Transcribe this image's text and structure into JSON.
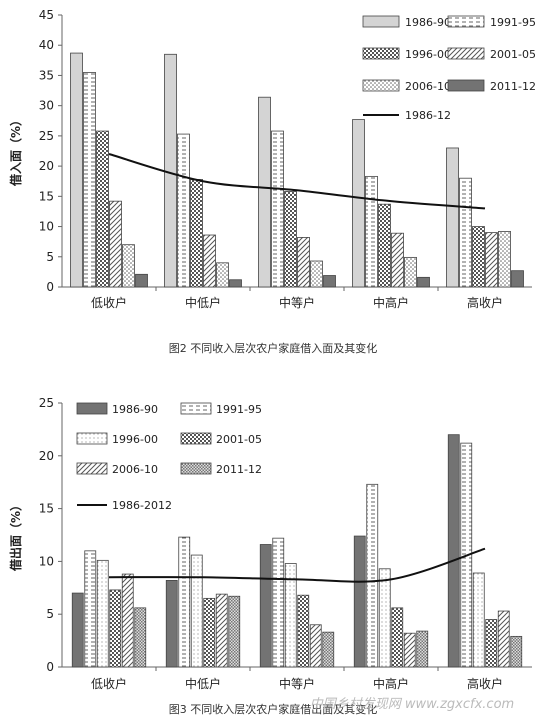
{
  "chart_data": [
    {
      "type": "bar",
      "categories": [
        "低收户",
        "中低户",
        "中等户",
        "中高户",
        "高收户"
      ],
      "ylabel": "借入面（%）",
      "ylim": [
        0,
        45
      ],
      "yticks": [
        0,
        5,
        10,
        15,
        20,
        25,
        30,
        35,
        40,
        45
      ],
      "grid": false,
      "legend": "top-right",
      "caption": "图2  不同收入层次农户家庭借入面及其变化",
      "series": [
        {
          "name": "1986-90",
          "values": [
            38.7,
            38.5,
            31.4,
            27.7,
            23.0
          ],
          "pattern": "solid-light"
        },
        {
          "name": "1991-95",
          "values": [
            35.5,
            25.3,
            25.8,
            18.3,
            18.0
          ],
          "pattern": "dash"
        },
        {
          "name": "1996-00",
          "values": [
            25.8,
            17.8,
            15.8,
            13.7,
            10.0
          ],
          "pattern": "check"
        },
        {
          "name": "2001-05",
          "values": [
            14.2,
            8.6,
            8.2,
            8.9,
            9.0
          ],
          "pattern": "diag"
        },
        {
          "name": "2006-10",
          "values": [
            7.0,
            4.0,
            4.3,
            4.9,
            9.2
          ],
          "pattern": "dots"
        },
        {
          "name": "2011-12",
          "values": [
            2.1,
            1.2,
            1.9,
            1.6,
            2.7
          ],
          "pattern": "solid-dark"
        }
      ],
      "trend": {
        "name": "1986-12",
        "values": [
          22.0,
          17.5,
          16.0,
          14.2,
          13.0
        ]
      }
    },
    {
      "type": "bar",
      "categories": [
        "低收户",
        "中低户",
        "中等户",
        "中高户",
        "高收户"
      ],
      "ylabel": "借出面（%）",
      "ylim": [
        0,
        25
      ],
      "yticks": [
        0,
        5,
        10,
        15,
        20,
        25
      ],
      "grid": false,
      "legend": "top-left",
      "caption": "图3  不同收入层次农户家庭借出面及其变化",
      "series": [
        {
          "name": "1986-90",
          "values": [
            7.0,
            8.2,
            11.6,
            12.4,
            22.0
          ],
          "pattern": "solid-dark"
        },
        {
          "name": "1991-95",
          "values": [
            11.0,
            12.3,
            12.2,
            17.3,
            21.2
          ],
          "pattern": "dash"
        },
        {
          "name": "1996-00",
          "values": [
            10.1,
            10.6,
            9.8,
            9.3,
            8.9
          ],
          "pattern": "dots-fine"
        },
        {
          "name": "2001-05",
          "values": [
            7.3,
            6.5,
            6.8,
            5.6,
            4.5
          ],
          "pattern": "check"
        },
        {
          "name": "2006-10",
          "values": [
            8.8,
            6.9,
            4.0,
            3.2,
            5.3
          ],
          "pattern": "diag"
        },
        {
          "name": "2011-12",
          "values": [
            5.6,
            6.7,
            3.3,
            3.4,
            2.9
          ],
          "pattern": "check-fine"
        }
      ],
      "trend": {
        "name": "1986-2012",
        "values": [
          8.5,
          8.5,
          8.3,
          8.3,
          11.2
        ]
      }
    }
  ],
  "watermark": "中国乡村发现网 www.zgxcfx.com"
}
